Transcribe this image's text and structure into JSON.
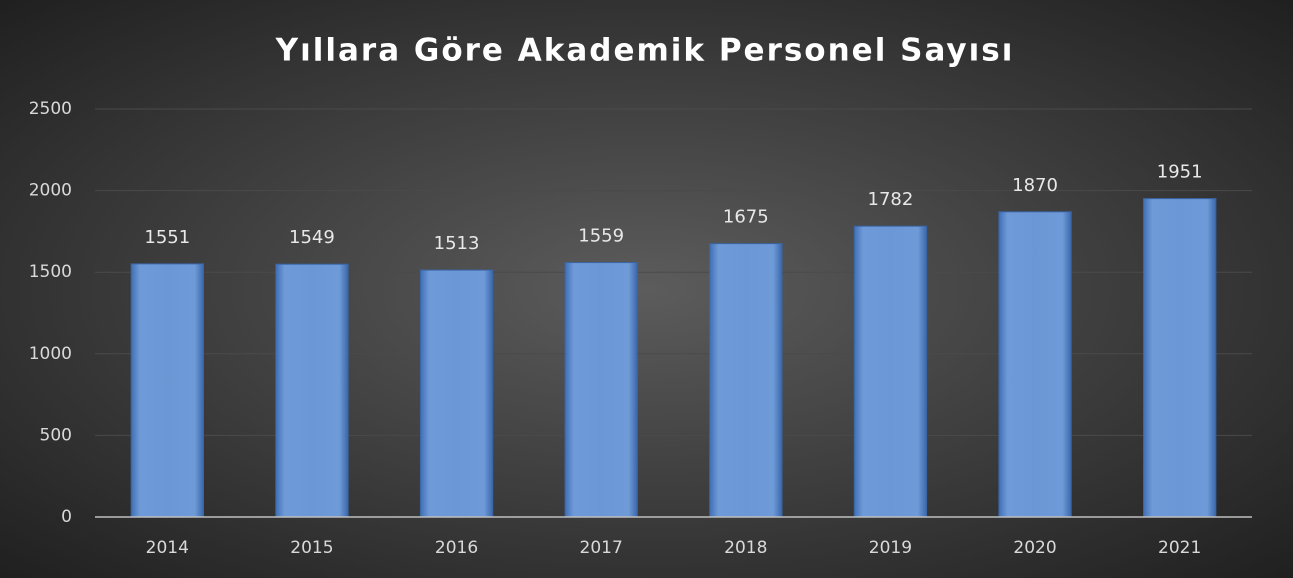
{
  "chart_data": {
    "type": "bar",
    "title": "Yıllara Göre Akademik Personel Sayısı",
    "categories": [
      "2014",
      "2015",
      "2016",
      "2017",
      "2018",
      "2019",
      "2020",
      "2021"
    ],
    "values": [
      1551,
      1549,
      1513,
      1559,
      1675,
      1782,
      1870,
      1951
    ],
    "color": "#5b8ad0",
    "ylim": [
      0,
      2500
    ],
    "yticks": [
      0,
      500,
      1000,
      1500,
      2000,
      2500
    ],
    "grid": true
  }
}
